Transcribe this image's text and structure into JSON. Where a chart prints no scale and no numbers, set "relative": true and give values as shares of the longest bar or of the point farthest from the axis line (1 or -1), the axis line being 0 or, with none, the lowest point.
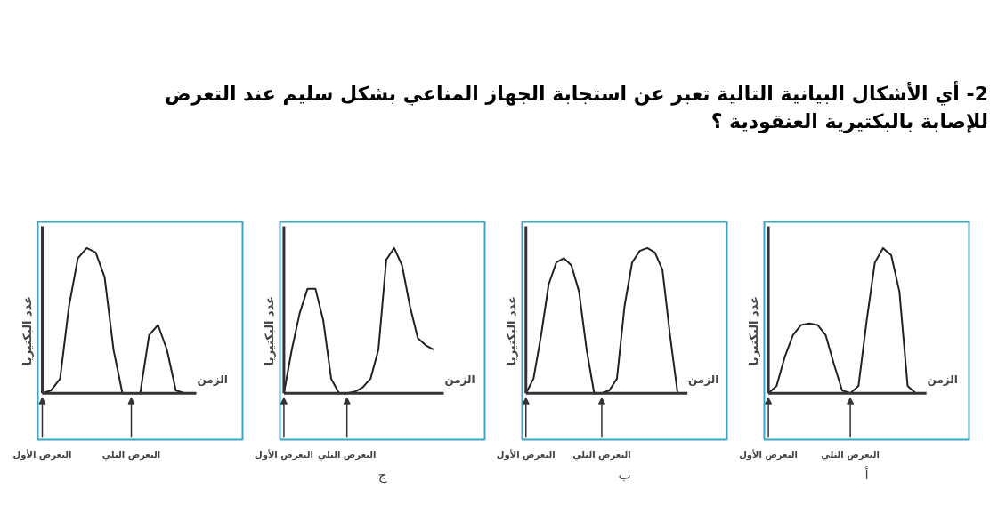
{
  "chart_data": [
    {
      "type": "line",
      "relative": true,
      "xlabel": "الزمن",
      "ylabel": "عدد البكتيريا",
      "grid": false,
      "categories": [
        "التعرض الأول",
        null,
        null,
        null,
        null,
        null,
        null,
        null,
        null,
        null,
        "التعرض الثلي",
        null,
        null,
        null,
        null,
        null,
        null
      ],
      "series": [
        {
          "color": "#222222",
          "values": [
            0,
            0.02,
            0.1,
            0.6,
            0.93,
            1.0,
            0.97,
            0.8,
            0.3,
            0,
            0,
            0,
            0.4,
            0.47,
            0.3,
            0.02,
            0
          ]
        }
      ]
    },
    {
      "type": "line",
      "relative": true,
      "xlabel": "الزمن",
      "ylabel": "عدد البكتيريا",
      "annotations": [
        "ج"
      ],
      "grid": false,
      "categories": [
        "التعرض الأول",
        null,
        null,
        null,
        null,
        null,
        null,
        null,
        "التعرض الثلي",
        null,
        null,
        null,
        null,
        null,
        null,
        null,
        null,
        null,
        null,
        null
      ],
      "series": [
        {
          "color": "#222222",
          "values": [
            0,
            0.3,
            0.55,
            0.72,
            0.72,
            0.5,
            0.1,
            0,
            0,
            0.01,
            0.04,
            0.1,
            0.3,
            0.92,
            1.0,
            0.88,
            0.6,
            0.38,
            0.33,
            0.3
          ]
        }
      ]
    },
    {
      "type": "line",
      "relative": true,
      "xlabel": "الزمن",
      "ylabel": "عدد البكتيريا",
      "annotations": [
        "ب"
      ],
      "grid": false,
      "categories": [
        "التعرض الأول",
        null,
        null,
        null,
        null,
        null,
        null,
        null,
        null,
        null,
        "التعرض الثلي",
        null,
        null,
        null,
        null,
        null,
        null,
        null,
        null,
        null,
        null
      ],
      "series": [
        {
          "color": "#222222",
          "values": [
            0,
            0.1,
            0.4,
            0.75,
            0.9,
            0.93,
            0.88,
            0.7,
            0.3,
            0,
            0,
            0.02,
            0.1,
            0.6,
            0.9,
            0.98,
            1.0,
            0.97,
            0.85,
            0.4,
            0
          ]
        }
      ]
    },
    {
      "type": "line",
      "relative": true,
      "title": "2- أي الأشكال البيانية التالية تعبر عن استجابة الجهاز المناعي بشكل سليم عند التعرض للإصابة بالبكتيرية العنقودية ؟",
      "xlabel": "الزمن",
      "ylabel": "عدد البكتيريا",
      "annotations": [
        "أ"
      ],
      "grid": false,
      "categories": [
        "التعرض الأول",
        null,
        null,
        null,
        null,
        null,
        null,
        null,
        null,
        null,
        "التعرض الثلي",
        null,
        null,
        null,
        null,
        null,
        null,
        null,
        null
      ],
      "series": [
        {
          "color": "#222222",
          "values": [
            0,
            0.05,
            0.25,
            0.4,
            0.47,
            0.48,
            0.47,
            0.4,
            0.2,
            0.02,
            0,
            0.05,
            0.5,
            0.9,
            1.0,
            0.95,
            0.7,
            0.05,
            0
          ]
        }
      ]
    }
  ]
}
